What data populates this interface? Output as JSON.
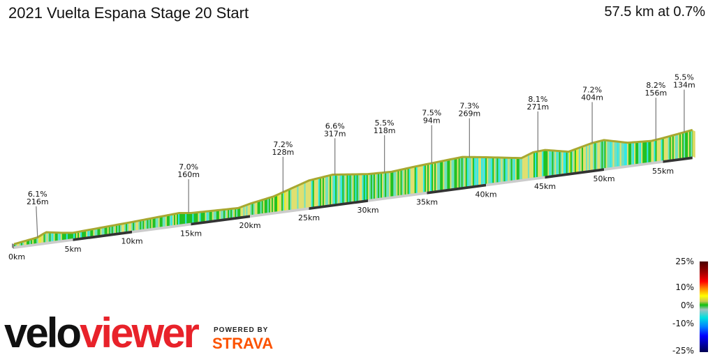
{
  "header": {
    "title": "2021 Vuelta Espana Stage 20 Start",
    "summary": "57.5 km at 0.7%"
  },
  "chart_data": {
    "type": "area",
    "title": "2021 Vuelta Espana Stage 20 Start",
    "xlabel": "",
    "ylabel": "",
    "x_ticks": [
      "0km",
      "5km",
      "10km",
      "15km",
      "20km",
      "25km",
      "30km",
      "35km",
      "40km",
      "45km",
      "50km",
      "55km"
    ],
    "x_tick_values": [
      0,
      5,
      10,
      15,
      20,
      25,
      30,
      35,
      40,
      45,
      50,
      55
    ],
    "xlim": [
      0,
      57.5
    ],
    "profile": {
      "km": [
        0,
        2,
        2.7,
        4,
        5,
        10,
        14,
        15,
        19,
        20,
        22,
        25,
        27,
        30,
        32,
        34,
        38,
        40,
        43,
        44,
        45,
        47,
        49,
        50,
        52,
        54,
        55,
        57.5
      ],
      "elevation_m": [
        7,
        30,
        48,
        46,
        46,
        83,
        114,
        114,
        131,
        146,
        171,
        226,
        246,
        248,
        256,
        274,
        307,
        306,
        303,
        323,
        331,
        325,
        355,
        365,
        356,
        362,
        372,
        400
      ]
    },
    "climbs": [
      {
        "km": 2.0,
        "gradient": "6.1%",
        "length": "216m"
      },
      {
        "km": 14.8,
        "gradient": "7.0%",
        "length": "160m"
      },
      {
        "km": 22.8,
        "gradient": "7.2%",
        "length": "128m"
      },
      {
        "km": 27.2,
        "gradient": "6.6%",
        "length": "317m"
      },
      {
        "km": 31.4,
        "gradient": "5.5%",
        "length": "118m"
      },
      {
        "km": 35.4,
        "gradient": "7.5%",
        "length": "94m"
      },
      {
        "km": 38.6,
        "gradient": "7.3%",
        "length": "269m"
      },
      {
        "km": 44.4,
        "gradient": "8.1%",
        "length": "271m"
      },
      {
        "km": 49.0,
        "gradient": "7.2%",
        "length": "404m"
      },
      {
        "km": 54.4,
        "gradient": "8.2%",
        "length": "156m"
      },
      {
        "km": 56.8,
        "gradient": "5.5%",
        "length": "134m"
      }
    ],
    "legend": {
      "placement": "bottom-right",
      "labels": [
        "25%",
        "10%",
        "0%",
        "-10%",
        "-25%"
      ],
      "values": [
        25,
        10,
        0,
        -10,
        -25
      ]
    },
    "colors": {
      "steep": "#f0f020",
      "moderate": "#e0e070",
      "flat": "#22c022",
      "gentle-down": "#70e0c0",
      "down": "#30e8e8",
      "ridge": "#a8a830"
    }
  },
  "branding": {
    "logo_part1": "velo",
    "logo_part2": "viewer",
    "powered": "POWERED BY",
    "strava": "STRAVA"
  }
}
